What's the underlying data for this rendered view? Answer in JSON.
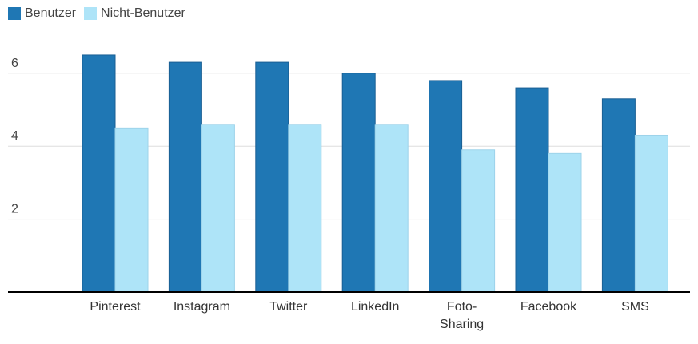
{
  "colors": {
    "benutzer": "#1f77b4",
    "nicht_benutzer": "#aee4f8",
    "grid": "#dddddd",
    "axis": "#000000"
  },
  "legend": {
    "items": [
      {
        "label": "Benutzer"
      },
      {
        "label": "Nicht-Benutzer"
      }
    ]
  },
  "chart_data": {
    "type": "bar",
    "title": "",
    "xlabel": "",
    "ylabel": "",
    "categories": [
      "Pinterest",
      "Instagram",
      "Twitter",
      "LinkedIn",
      "Foto-\nSharing",
      "Facebook",
      "SMS"
    ],
    "series": [
      {
        "name": "Benutzer",
        "values": [
          6.5,
          6.3,
          6.3,
          6.0,
          5.8,
          5.6,
          5.3
        ]
      },
      {
        "name": "Nicht-Benutzer",
        "values": [
          4.5,
          4.6,
          4.6,
          4.6,
          3.9,
          3.8,
          4.3
        ]
      }
    ],
    "yticks": [
      "2",
      "4",
      "6"
    ],
    "ylim": [
      0,
      7
    ],
    "grid": true,
    "legend_position": "top-left"
  }
}
